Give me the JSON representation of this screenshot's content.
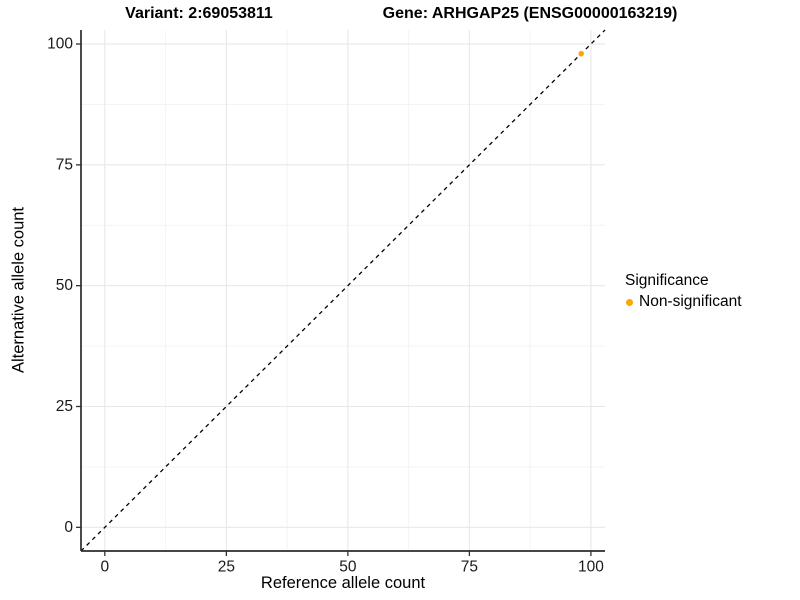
{
  "titles": {
    "variant": "Variant: 2:69053811",
    "gene": "Gene: ARHGAP25 (ENSG00000163219)"
  },
  "axes": {
    "x": {
      "label": "Reference allele count",
      "tick_labels": [
        "0",
        "25",
        "50",
        "75",
        "100"
      ]
    },
    "y": {
      "label": "Alternative allele count",
      "tick_labels": [
        "0",
        "25",
        "50",
        "75",
        "100"
      ]
    }
  },
  "legend": {
    "title": "Significance",
    "position": "right",
    "items": [
      {
        "label": "Non-significant",
        "color": "#FFA500",
        "marker": "dot"
      }
    ]
  },
  "chart_data": {
    "type": "scatter",
    "title": "Variant: 2:69053811 | Gene: ARHGAP25 (ENSG00000163219)",
    "xlabel": "Reference allele count",
    "ylabel": "Alternative allele count",
    "xlim": [
      -4.9,
      102.9
    ],
    "ylim": [
      -4.9,
      102.9
    ],
    "x_ticks": [
      0,
      25,
      50,
      75,
      100
    ],
    "y_ticks": [
      0,
      25,
      50,
      75,
      100
    ],
    "x_minor_ticks": [
      12.5,
      37.5,
      62.5,
      87.5
    ],
    "y_minor_ticks": [
      12.5,
      37.5,
      62.5,
      87.5
    ],
    "grid": true,
    "legend_position": "right",
    "series": [
      {
        "name": "Non-significant",
        "color": "#FFA500",
        "points": [
          {
            "x": 98,
            "y": 98
          }
        ]
      }
    ],
    "reference_line": {
      "type": "identity",
      "slope": 1,
      "intercept": 0,
      "style": "dashed",
      "color": "#000000"
    },
    "colors": {
      "point": "#FFA500",
      "grid_major": "#E8E8E8",
      "grid_minor": "#F3F3F3",
      "axis_line": "#2B2B2B",
      "tick_mark": "#333333",
      "tick_text": "#1A1A1A",
      "panel_background": "#FFFFFF"
    }
  }
}
